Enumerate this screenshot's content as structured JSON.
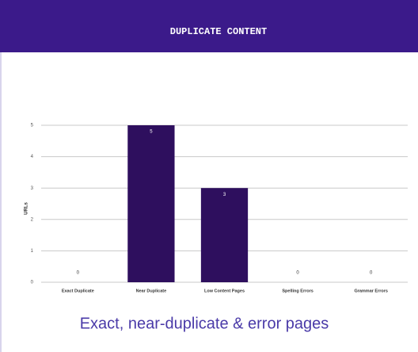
{
  "chart_data": {
    "type": "bar",
    "title": "DUPLICATE CONTENT",
    "y_label": "URLs",
    "categories": [
      "Exact Duplicate",
      "Near Duplicate",
      "Low Content Pages",
      "Spelling Errors",
      "Grammar Errors"
    ],
    "values": [
      0,
      5,
      3,
      0,
      0
    ],
    "color": "#2e0f5e",
    "ylim": [
      0,
      5
    ],
    "yticks": [
      0,
      1,
      2,
      3,
      4,
      5
    ],
    "grid": true,
    "caption": "Exact, near-duplicate & error pages"
  }
}
